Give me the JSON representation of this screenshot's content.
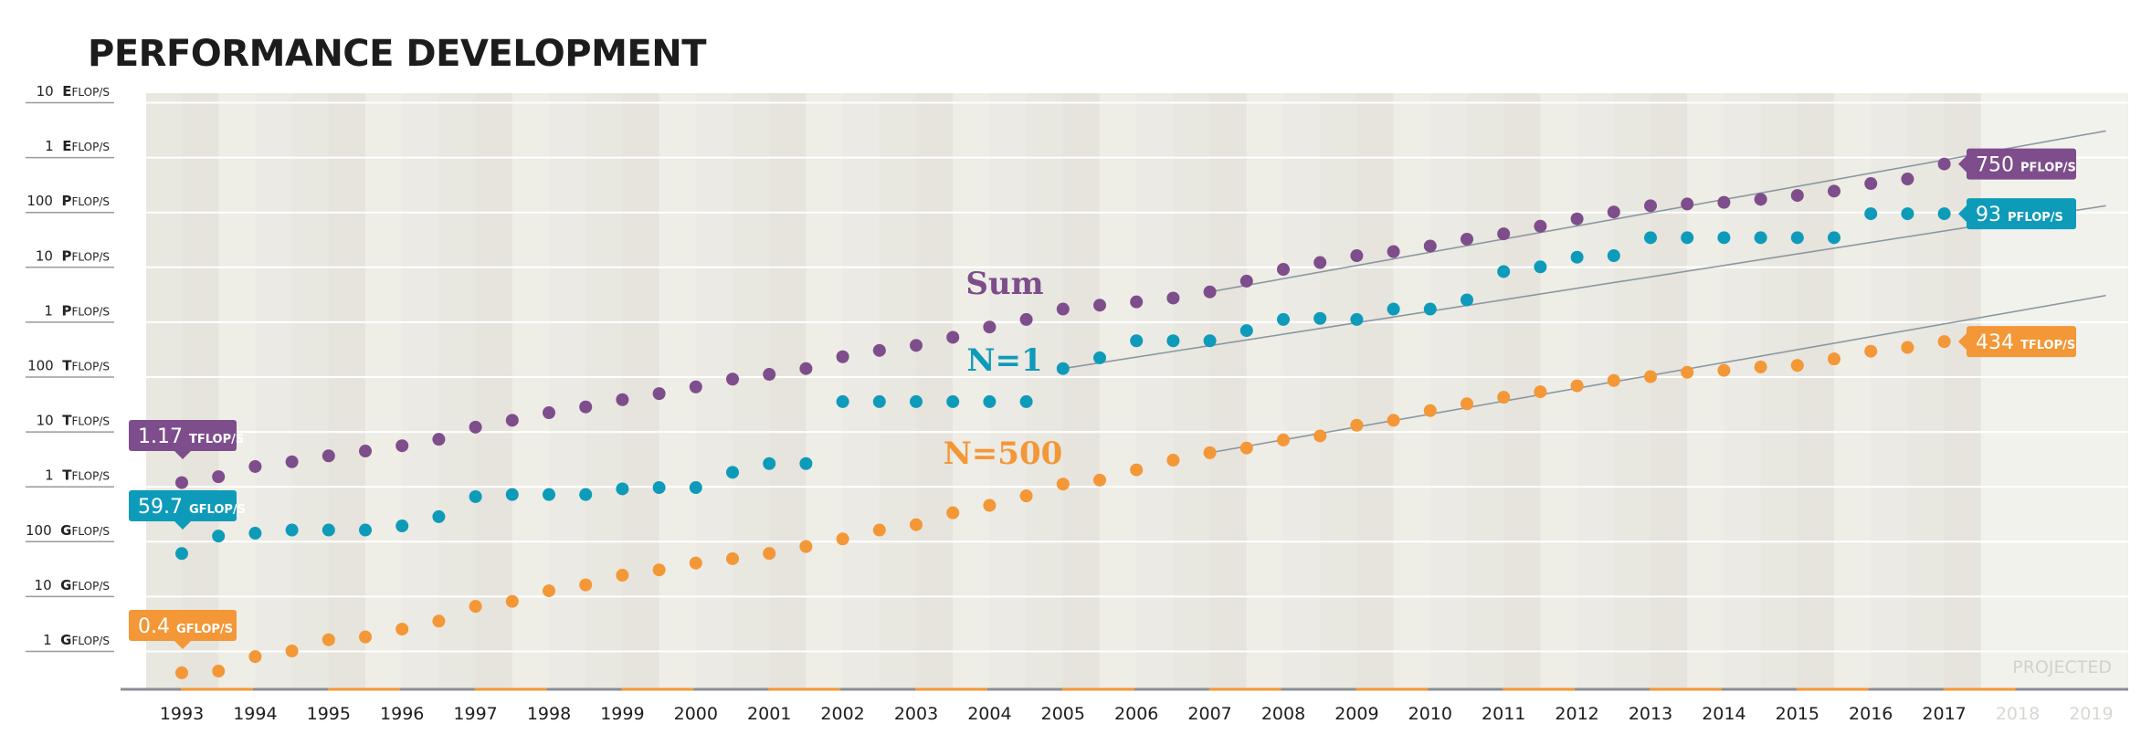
{
  "chart_data": {
    "type": "scatter",
    "title": "PERFORMANCE DEVELOPMENT",
    "y_scale": "log",
    "y_unit": "FLOP/s",
    "ylim": [
      500000000.0,
      3e+18
    ],
    "y_ticks": [
      {
        "num": "1",
        "prefix": "G",
        "suffix": "FLOP/S",
        "value": 1000000000.0
      },
      {
        "num": "10",
        "prefix": "G",
        "suffix": "FLOP/S",
        "value": 10000000000.0
      },
      {
        "num": "100",
        "prefix": "G",
        "suffix": "FLOP/S",
        "value": 100000000000.0
      },
      {
        "num": "1",
        "prefix": "T",
        "suffix": "FLOP/S",
        "value": 1000000000000.0
      },
      {
        "num": "10",
        "prefix": "T",
        "suffix": "FLOP/S",
        "value": 10000000000000.0
      },
      {
        "num": "100",
        "prefix": "T",
        "suffix": "FLOP/S",
        "value": 100000000000000.0
      },
      {
        "num": "1",
        "prefix": "P",
        "suffix": "FLOP/S",
        "value": 1000000000000000.0
      },
      {
        "num": "10",
        "prefix": "P",
        "suffix": "FLOP/S",
        "value": 1e+16
      },
      {
        "num": "100",
        "prefix": "P",
        "suffix": "FLOP/S",
        "value": 1e+17
      },
      {
        "num": "1",
        "prefix": "E",
        "suffix": "FLOP/S",
        "value": 1e+18
      },
      {
        "num": "10",
        "prefix": "E",
        "suffix": "FLOP/S",
        "value": 1e+19
      }
    ],
    "x_ticks": [
      "1993",
      "1994",
      "1995",
      "1996",
      "1997",
      "1998",
      "1999",
      "2000",
      "2001",
      "2002",
      "2003",
      "2004",
      "2005",
      "2006",
      "2007",
      "2008",
      "2009",
      "2010",
      "2011",
      "2012",
      "2013",
      "2014",
      "2015",
      "2016",
      "2017",
      "2018",
      "2019"
    ],
    "projected_years": [
      "2018",
      "2019"
    ],
    "projected_label": "PROJECTED",
    "x_positions": [
      1993.0,
      1993.5,
      1994.0,
      1994.5,
      1995.0,
      1995.5,
      1996.0,
      1996.5,
      1997.0,
      1997.5,
      1998.0,
      1998.5,
      1999.0,
      1999.5,
      2000.0,
      2000.5,
      2001.0,
      2001.5,
      2002.0,
      2002.5,
      2003.0,
      2003.5,
      2004.0,
      2004.5,
      2005.0,
      2005.5,
      2006.0,
      2006.5,
      2007.0,
      2007.5,
      2008.0,
      2008.5,
      2009.0,
      2009.5,
      2010.0,
      2010.5,
      2011.0,
      2011.5,
      2012.0,
      2012.5,
      2013.0,
      2013.5,
      2014.0,
      2014.5,
      2015.0,
      2015.5,
      2016.0,
      2016.5,
      2017.0
    ],
    "series": [
      {
        "name": "Sum",
        "color": "#7e4d8b",
        "values": [
          1170000000000.0,
          1500000000000.0,
          2300000000000.0,
          2800000000000.0,
          3600000000000.0,
          4400000000000.0,
          5500000000000.0,
          7200000000000.0,
          12000000000000.0,
          16000000000000.0,
          22000000000000.0,
          28000000000000.0,
          38000000000000.0,
          49000000000000.0,
          65000000000000.0,
          90000000000000.0,
          110000000000000.0,
          140000000000000.0,
          230000000000000.0,
          300000000000000.0,
          370000000000000.0,
          520000000000000.0,
          800000000000000.0,
          1100000000000000.0,
          1700000000000000.0,
          2000000000000000.0,
          2300000000000000.0,
          2700000000000000.0,
          3500000000000000.0,
          5500000000000000.0,
          9000000000000000.0,
          1.2e+16,
          1.6e+16,
          1.9e+16,
          2.4e+16,
          3.2e+16,
          4e+16,
          5.5e+16,
          7.5e+16,
          1e+17,
          1.3e+17,
          1.4e+17,
          1.5e+17,
          1.7e+17,
          2e+17,
          2.4e+17,
          3.3e+17,
          4e+17,
          7.5e+17
        ],
        "callout_start": {
          "num": "1.17",
          "unit": "TFLOP/S"
        },
        "callout_end": {
          "num": "750",
          "unit": "PFLOP/S"
        }
      },
      {
        "name": "N=1",
        "color": "#0e9bb9",
        "values": [
          59700000000.0,
          124000000000.0,
          140000000000.0,
          160000000000.0,
          160000000000.0,
          160000000000.0,
          190000000000.0,
          280000000000.0,
          650000000000.0,
          710000000000.0,
          710000000000.0,
          710000000000.0,
          900000000000.0,
          950000000000.0,
          950000000000.0,
          1800000000000.0,
          2600000000000.0,
          2600000000000.0,
          35000000000000.0,
          35000000000000.0,
          35000000000000.0,
          35000000000000.0,
          35000000000000.0,
          35000000000000.0,
          140000000000000.0,
          220000000000000.0,
          450000000000000.0,
          450000000000000.0,
          450000000000000.0,
          690000000000000.0,
          1100000000000000.0,
          1150000000000000.0,
          1100000000000000.0,
          1700000000000000.0,
          1700000000000000.0,
          2500000000000000.0,
          8200000000000000.0,
          1e+16,
          1.5e+16,
          1.6e+16,
          3.4e+16,
          3.4e+16,
          3.4e+16,
          3.4e+16,
          3.4e+16,
          3.4e+16,
          9.3e+16,
          9.3e+16,
          9.3e+16
        ],
        "callout_start": {
          "num": "59.7",
          "unit": "GFLOP/S"
        },
        "callout_end": {
          "num": "93",
          "unit": "PFLOP/S"
        }
      },
      {
        "name": "N=500",
        "color": "#f39737",
        "values": [
          400000000.0,
          430000000.0,
          790000000.0,
          1000000000.0,
          1600000000.0,
          1800000000.0,
          2500000000.0,
          3500000000.0,
          6500000000.0,
          8000000000.0,
          12500000000.0,
          16000000000.0,
          24000000000.0,
          30000000000.0,
          40000000000.0,
          48000000000.0,
          60000000000.0,
          80000000000.0,
          110000000000.0,
          160000000000.0,
          200000000000.0,
          330000000000.0,
          450000000000.0,
          670000000000.0,
          1100000000000.0,
          1300000000000.0,
          2000000000000.0,
          3000000000000.0,
          4100000000000.0,
          5000000000000.0,
          7000000000000.0,
          8300000000000.0,
          13000000000000.0,
          16000000000000.0,
          24000000000000.0,
          32000000000000.0,
          42000000000000.0,
          53000000000000.0,
          68000000000000.0,
          85000000000000.0,
          100000000000000.0,
          120000000000000.0,
          130000000000000.0,
          150000000000000.0,
          160000000000000.0,
          210000000000000.0,
          290000000000000.0,
          340000000000000.0,
          434000000000000.0
        ],
        "callout_start": {
          "num": "0.4",
          "unit": "GFLOP/S"
        },
        "callout_end": {
          "num": "434",
          "unit": "TFLOP/S"
        }
      }
    ],
    "projection_lines": [
      {
        "series": "Sum",
        "color": "#7b8a96",
        "from": [
          2007.0,
          3500000000000000.0
        ],
        "to": [
          2019.2,
          3e+18
        ]
      },
      {
        "series": "N=1",
        "color": "#7b8a96",
        "from": [
          2005.0,
          140000000000000.0
        ],
        "to": [
          2019.2,
          1.3e+17
        ]
      },
      {
        "series": "N=500",
        "color": "#7b8a96",
        "from": [
          2007.0,
          4100000000000.0
        ],
        "to": [
          2019.2,
          3000000000000000.0
        ]
      }
    ]
  },
  "theme": {
    "plot_bg_even": "#e8e7e0",
    "plot_bg_odd": "#eeede6",
    "projected_bg": "#f2f2ed",
    "gridline": "#ffffff",
    "axis_line": "#8a8e95",
    "axis_accent": "#f39737"
  }
}
